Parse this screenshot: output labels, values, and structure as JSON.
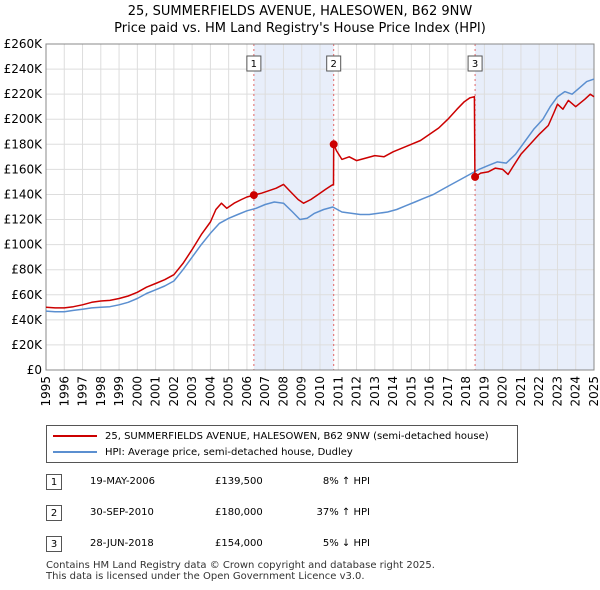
{
  "chart_data": {
    "type": "line",
    "title": "25, SUMMERFIELDS AVENUE, HALESOWEN, B62 9NW",
    "subtitle": "Price paid vs. HM Land Registry's House Price Index (HPI)",
    "xlim": [
      1995,
      2025
    ],
    "ylim": [
      0,
      260000
    ],
    "x_ticks": [
      1995,
      1996,
      1997,
      1998,
      1999,
      2000,
      2001,
      2002,
      2003,
      2004,
      2005,
      2006,
      2007,
      2008,
      2009,
      2010,
      2011,
      2012,
      2013,
      2014,
      2015,
      2016,
      2017,
      2018,
      2019,
      2020,
      2021,
      2022,
      2023,
      2024,
      2025
    ],
    "y_ticks": [
      {
        "value": 0,
        "label": "£0"
      },
      {
        "value": 20000,
        "label": "£20K"
      },
      {
        "value": 40000,
        "label": "£40K"
      },
      {
        "value": 60000,
        "label": "£60K"
      },
      {
        "value": 80000,
        "label": "£80K"
      },
      {
        "value": 100000,
        "label": "£100K"
      },
      {
        "value": 120000,
        "label": "£120K"
      },
      {
        "value": 140000,
        "label": "£140K"
      },
      {
        "value": 160000,
        "label": "£160K"
      },
      {
        "value": 180000,
        "label": "£180K"
      },
      {
        "value": 200000,
        "label": "£200K"
      },
      {
        "value": 220000,
        "label": "£220K"
      },
      {
        "value": 240000,
        "label": "£240K"
      },
      {
        "value": 260000,
        "label": "£260K"
      }
    ],
    "series": [
      {
        "name": "25, SUMMERFIELDS AVENUE, HALESOWEN, B62 9NW (semi-detached house)",
        "color": "#cc0000",
        "points": [
          [
            1995.0,
            50000
          ],
          [
            1995.5,
            49500
          ],
          [
            1996.0,
            49500
          ],
          [
            1996.5,
            50500
          ],
          [
            1997.0,
            52000
          ],
          [
            1997.5,
            54000
          ],
          [
            1998.0,
            55000
          ],
          [
            1998.5,
            55500
          ],
          [
            1999.0,
            57000
          ],
          [
            1999.5,
            59000
          ],
          [
            2000.0,
            62000
          ],
          [
            2000.5,
            66000
          ],
          [
            2001.0,
            69000
          ],
          [
            2001.5,
            72000
          ],
          [
            2002.0,
            76000
          ],
          [
            2002.5,
            85000
          ],
          [
            2003.0,
            96000
          ],
          [
            2003.5,
            108000
          ],
          [
            2004.0,
            118000
          ],
          [
            2004.3,
            128000
          ],
          [
            2004.6,
            133000
          ],
          [
            2004.9,
            129000
          ],
          [
            2005.3,
            133000
          ],
          [
            2005.7,
            136000
          ],
          [
            2006.0,
            138000
          ],
          [
            2006.38,
            139500
          ],
          [
            2006.8,
            141000
          ],
          [
            2007.2,
            143000
          ],
          [
            2007.6,
            145000
          ],
          [
            2008.0,
            148000
          ],
          [
            2008.4,
            142000
          ],
          [
            2008.8,
            136000
          ],
          [
            2009.1,
            133000
          ],
          [
            2009.5,
            136000
          ],
          [
            2009.9,
            140000
          ],
          [
            2010.3,
            144000
          ],
          [
            2010.6,
            147000
          ],
          [
            2010.74,
            148000
          ],
          [
            2010.75,
            180000
          ],
          [
            2010.9,
            175000
          ],
          [
            2011.2,
            168000
          ],
          [
            2011.6,
            170000
          ],
          [
            2012.0,
            167000
          ],
          [
            2012.5,
            169000
          ],
          [
            2013.0,
            171000
          ],
          [
            2013.5,
            170000
          ],
          [
            2014.0,
            174000
          ],
          [
            2014.5,
            177000
          ],
          [
            2015.0,
            180000
          ],
          [
            2015.5,
            183000
          ],
          [
            2016.0,
            188000
          ],
          [
            2016.5,
            193000
          ],
          [
            2017.0,
            200000
          ],
          [
            2017.5,
            208000
          ],
          [
            2017.9,
            214000
          ],
          [
            2018.2,
            217000
          ],
          [
            2018.45,
            218000
          ],
          [
            2018.48,
            154000
          ],
          [
            2018.8,
            157000
          ],
          [
            2019.2,
            158000
          ],
          [
            2019.6,
            161000
          ],
          [
            2020.0,
            160000
          ],
          [
            2020.3,
            156000
          ],
          [
            2020.6,
            163000
          ],
          [
            2021.0,
            172000
          ],
          [
            2021.5,
            180000
          ],
          [
            2022.0,
            188000
          ],
          [
            2022.5,
            195000
          ],
          [
            2022.8,
            205000
          ],
          [
            2023.0,
            212000
          ],
          [
            2023.3,
            208000
          ],
          [
            2023.6,
            215000
          ],
          [
            2024.0,
            210000
          ],
          [
            2024.5,
            216000
          ],
          [
            2024.8,
            220000
          ],
          [
            2025.0,
            218000
          ]
        ]
      },
      {
        "name": "HPI: Average price, semi-detached house, Dudley",
        "color": "#5b8fd0",
        "points": [
          [
            1995.0,
            47000
          ],
          [
            1995.5,
            46500
          ],
          [
            1996.0,
            46500
          ],
          [
            1996.5,
            47500
          ],
          [
            1997.0,
            48500
          ],
          [
            1997.5,
            49500
          ],
          [
            1998.0,
            50000
          ],
          [
            1998.5,
            50500
          ],
          [
            1999.0,
            52000
          ],
          [
            1999.5,
            54000
          ],
          [
            2000.0,
            57000
          ],
          [
            2000.5,
            61000
          ],
          [
            2001.0,
            64000
          ],
          [
            2001.5,
            67000
          ],
          [
            2002.0,
            71000
          ],
          [
            2002.5,
            80000
          ],
          [
            2003.0,
            90000
          ],
          [
            2003.5,
            100000
          ],
          [
            2004.0,
            109000
          ],
          [
            2004.5,
            117000
          ],
          [
            2005.0,
            121000
          ],
          [
            2005.5,
            124000
          ],
          [
            2006.0,
            127000
          ],
          [
            2006.5,
            129000
          ],
          [
            2007.0,
            132000
          ],
          [
            2007.5,
            134000
          ],
          [
            2008.0,
            133000
          ],
          [
            2008.5,
            126000
          ],
          [
            2008.9,
            120000
          ],
          [
            2009.3,
            121000
          ],
          [
            2009.7,
            125000
          ],
          [
            2010.2,
            128000
          ],
          [
            2010.7,
            130000
          ],
          [
            2011.2,
            126000
          ],
          [
            2011.7,
            125000
          ],
          [
            2012.2,
            124000
          ],
          [
            2012.7,
            124000
          ],
          [
            2013.2,
            125000
          ],
          [
            2013.7,
            126000
          ],
          [
            2014.2,
            128000
          ],
          [
            2014.7,
            131000
          ],
          [
            2015.2,
            134000
          ],
          [
            2015.7,
            137000
          ],
          [
            2016.2,
            140000
          ],
          [
            2016.7,
            144000
          ],
          [
            2017.2,
            148000
          ],
          [
            2017.7,
            152000
          ],
          [
            2018.2,
            156000
          ],
          [
            2018.7,
            160000
          ],
          [
            2019.2,
            163000
          ],
          [
            2019.7,
            166000
          ],
          [
            2020.2,
            165000
          ],
          [
            2020.7,
            172000
          ],
          [
            2021.2,
            182000
          ],
          [
            2021.7,
            192000
          ],
          [
            2022.2,
            200000
          ],
          [
            2022.6,
            210000
          ],
          [
            2023.0,
            218000
          ],
          [
            2023.4,
            222000
          ],
          [
            2023.8,
            220000
          ],
          [
            2024.2,
            225000
          ],
          [
            2024.6,
            230000
          ],
          [
            2025.0,
            232000
          ]
        ]
      }
    ],
    "transactions": [
      {
        "num": "1",
        "x": 2006.38,
        "y": 139500
      },
      {
        "num": "2",
        "x": 2010.75,
        "y": 180000
      },
      {
        "num": "3",
        "x": 2018.49,
        "y": 154000
      }
    ],
    "shaded_ranges": [
      [
        2006.38,
        2010.75
      ],
      [
        2018.49,
        2025
      ]
    ]
  },
  "legend": {
    "property_label": "25, SUMMERFIELDS AVENUE, HALESOWEN, B62 9NW (semi-detached house)",
    "hpi_label": "HPI: Average price, semi-detached house, Dudley",
    "property_color": "#cc0000",
    "hpi_color": "#5b8fd0"
  },
  "sales": [
    {
      "num": "1",
      "date": "19-MAY-2006",
      "price": "£139,500",
      "hpi": "8% ↑ HPI"
    },
    {
      "num": "2",
      "date": "30-SEP-2010",
      "price": "£180,000",
      "hpi": "37% ↑ HPI"
    },
    {
      "num": "3",
      "date": "28-JUN-2018",
      "price": "£154,000",
      "hpi": "5% ↓ HPI"
    }
  ],
  "footer": {
    "line1": "Contains HM Land Registry data © Crown copyright and database right 2025.",
    "line2": "This data is licensed under the Open Government Licence v3.0."
  }
}
